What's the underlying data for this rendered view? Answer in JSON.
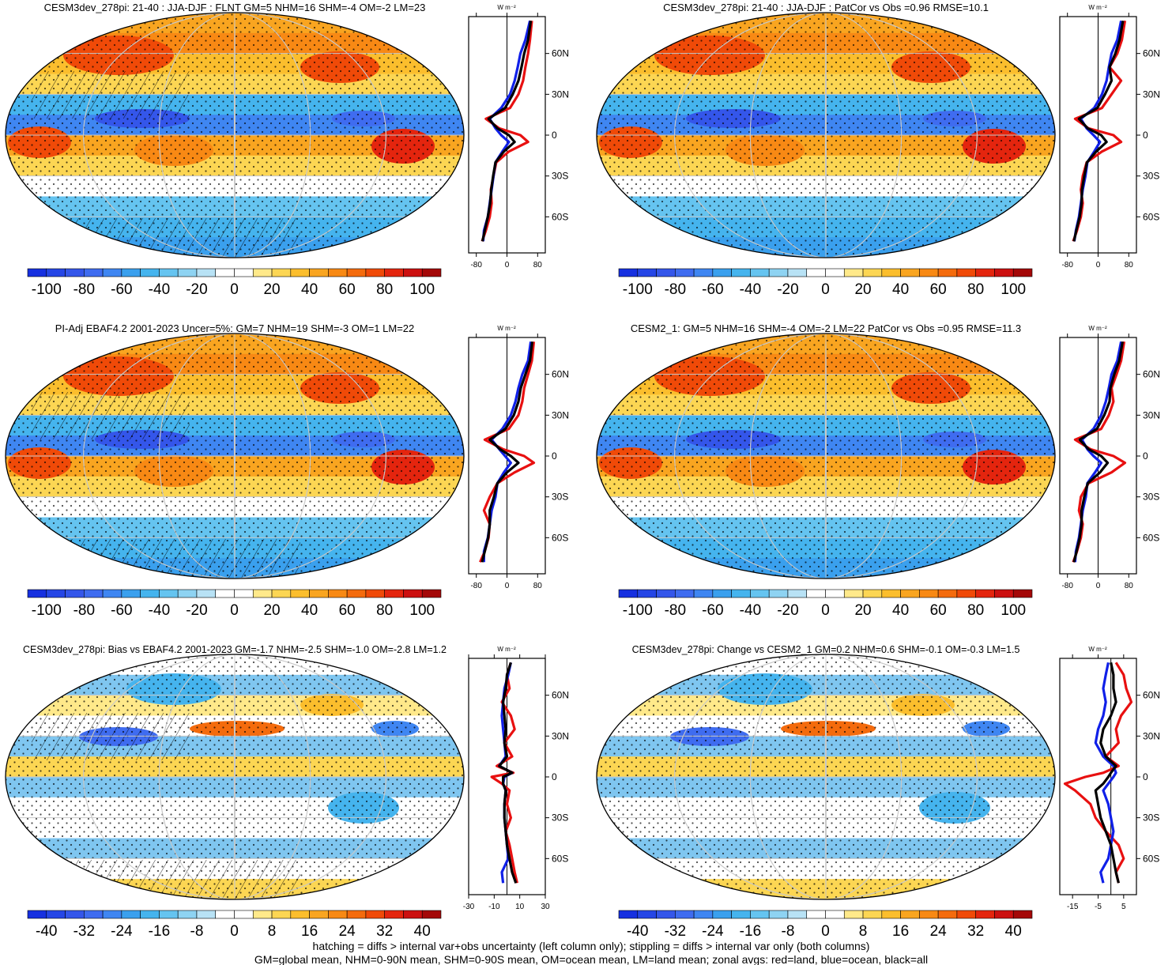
{
  "units_label": "W m⁻²",
  "palette": {
    "levels": 22,
    "colors": [
      "#1630e0",
      "#2546e6",
      "#3456ea",
      "#3f6cf0",
      "#3f86f2",
      "#3aa0ee",
      "#45b4ee",
      "#65c4f0",
      "#8ed3f2",
      "#b8e2f5",
      "#ffffff",
      "#ffffff",
      "#ffe98a",
      "#fcd653",
      "#fbbe2d",
      "#f9a520",
      "#f88914",
      "#f46b0d",
      "#f04a08",
      "#e4250e",
      "#cc1010",
      "#a40808"
    ]
  },
  "footer": {
    "line1": "hatching = diffs > internal var+obs uncertainty (left column only); stippling = diffs > internal var only (both columns)",
    "line2": "GM=global mean, NHM=0-90N mean, SHM=0-90S mean, OM=ocean mean, LM=land mean; zonal avgs: red=land, blue=ocean, black=all"
  },
  "chart_data": [
    {
      "type": "heatmap",
      "title": "CESM3dev_278pi: 21-40 : JJA-DJF : FLNT GM=5 NHM=16 SHM=-4 OM=-2 LM=23",
      "colorbar_ticks": [
        "-100",
        "-80",
        "-60",
        "-40",
        "-20",
        "0",
        "20",
        "40",
        "60",
        "80",
        "100"
      ],
      "colorbar_range": [
        -110,
        110
      ],
      "lat_ticks": [
        "60N",
        "30N",
        "0",
        "30S",
        "60S"
      ],
      "zonal_xticks": [
        "-80",
        "0",
        "80"
      ],
      "zonal_xlim": [
        -100,
        100
      ],
      "zonal": {
        "lat": [
          84,
          70,
          60,
          50,
          40,
          30,
          20,
          12,
          5,
          0,
          -5,
          -12,
          -20,
          -30,
          -40,
          -50,
          -60,
          -70,
          -78
        ],
        "land": [
          65,
          60,
          55,
          48,
          42,
          30,
          8,
          -55,
          -20,
          35,
          55,
          5,
          -28,
          -35,
          -42,
          -40,
          -45,
          -55,
          -65
        ],
        "ocean": [
          60,
          48,
          35,
          28,
          20,
          8,
          -15,
          -45,
          -30,
          -15,
          5,
          -12,
          -30,
          -35,
          -40,
          -45,
          -50,
          -60,
          -62
        ],
        "all": [
          62,
          55,
          45,
          38,
          30,
          15,
          -5,
          -48,
          -25,
          5,
          20,
          -8,
          -30,
          -36,
          -41,
          -44,
          -50,
          -58,
          -64
        ]
      }
    },
    {
      "type": "heatmap",
      "title": "CESM3dev_278pi: 21-40 : JJA-DJF : PatCor vs Obs =0.96 RMSE=10.1",
      "colorbar_ticks": [
        "-100",
        "-80",
        "-60",
        "-40",
        "-20",
        "0",
        "20",
        "40",
        "60",
        "80",
        "100"
      ],
      "colorbar_range": [
        -110,
        110
      ],
      "lat_ticks": [
        "60N",
        "30N",
        "0",
        "30S",
        "60S"
      ],
      "zonal_xticks": [
        "-80",
        "0",
        "80"
      ],
      "zonal_xlim": [
        -100,
        100
      ],
      "zonal": {
        "lat": [
          84,
          70,
          60,
          50,
          40,
          30,
          20,
          12,
          5,
          0,
          -5,
          -12,
          -20,
          -30,
          -40,
          -50,
          -60,
          -70,
          -78
        ],
        "land": [
          70,
          62,
          50,
          30,
          60,
          35,
          10,
          -60,
          -25,
          40,
          60,
          10,
          -30,
          -40,
          -45,
          -40,
          -45,
          -55,
          -65
        ],
        "ocean": [
          60,
          50,
          35,
          28,
          22,
          10,
          -10,
          -45,
          -30,
          -12,
          5,
          -10,
          -28,
          -33,
          -40,
          -45,
          -50,
          -58,
          -62
        ],
        "all": [
          65,
          56,
          45,
          30,
          35,
          18,
          -2,
          -50,
          -27,
          8,
          22,
          -5,
          -29,
          -36,
          -42,
          -43,
          -48,
          -57,
          -63
        ]
      }
    },
    {
      "type": "heatmap",
      "title": "PI-Adj EBAF4.2 2001-2023 Uncer=5%: GM=7 NHM=19 SHM=-3 OM=1 LM=22",
      "colorbar_ticks": [
        "-100",
        "-80",
        "-60",
        "-40",
        "-20",
        "0",
        "20",
        "40",
        "60",
        "80",
        "100"
      ],
      "colorbar_range": [
        -110,
        110
      ],
      "lat_ticks": [
        "60N",
        "30N",
        "0",
        "30S",
        "60S"
      ],
      "zonal_xticks": [
        "-80",
        "0",
        "80"
      ],
      "zonal_xlim": [
        -100,
        100
      ],
      "zonal": {
        "lat": [
          84,
          70,
          60,
          50,
          40,
          30,
          20,
          12,
          5,
          0,
          -5,
          -12,
          -20,
          -30,
          -40,
          -50,
          -60,
          -70,
          -78
        ],
        "land": [
          70,
          65,
          55,
          45,
          40,
          30,
          5,
          -58,
          -10,
          45,
          70,
          20,
          -25,
          -45,
          -60,
          -45,
          -48,
          -58,
          -70
        ],
        "ocean": [
          62,
          55,
          40,
          30,
          22,
          10,
          -12,
          -40,
          -20,
          -5,
          10,
          -8,
          -25,
          -30,
          -40,
          -45,
          -50,
          -60,
          -60
        ],
        "all": [
          66,
          60,
          48,
          36,
          30,
          18,
          -4,
          -45,
          -18,
          10,
          30,
          0,
          -25,
          -34,
          -45,
          -45,
          -49,
          -58,
          -65
        ]
      }
    },
    {
      "type": "heatmap",
      "title": "CESM2_1: GM=5 NHM=16 SHM=-4 OM=-2 LM=22 PatCor vs Obs =0.95 RMSE=11.3",
      "colorbar_ticks": [
        "-100",
        "-80",
        "-60",
        "-40",
        "-20",
        "0",
        "20",
        "40",
        "60",
        "80",
        "100"
      ],
      "colorbar_range": [
        -110,
        110
      ],
      "lat_ticks": [
        "60N",
        "30N",
        "0",
        "30S",
        "60S"
      ],
      "zonal_xticks": [
        "-80",
        "0",
        "80"
      ],
      "zonal_xlim": [
        -100,
        100
      ],
      "zonal": {
        "lat": [
          84,
          70,
          60,
          50,
          40,
          30,
          20,
          12,
          5,
          0,
          -5,
          -12,
          -20,
          -30,
          -40,
          -50,
          -60,
          -70,
          -78
        ],
        "land": [
          68,
          60,
          48,
          35,
          40,
          28,
          8,
          -60,
          -20,
          40,
          70,
          35,
          -25,
          -45,
          -50,
          -40,
          -45,
          -55,
          -65
        ],
        "ocean": [
          60,
          50,
          35,
          28,
          20,
          8,
          -12,
          -42,
          -28,
          -12,
          8,
          -8,
          -28,
          -32,
          -40,
          -45,
          -50,
          -58,
          -60
        ],
        "all": [
          64,
          55,
          42,
          32,
          30,
          16,
          -3,
          -48,
          -25,
          8,
          25,
          5,
          -27,
          -36,
          -43,
          -43,
          -48,
          -56,
          -63
        ]
      }
    },
    {
      "type": "heatmap",
      "title": "CESM3dev_278pi: Bias vs EBAF4.2 2001-2023 GM=-1.7 NHM=-2.5 SHM=-1.0 OM=-2.8 LM=1.2",
      "colorbar_ticks": [
        "-40",
        "-32",
        "-24",
        "-16",
        "-8",
        "0",
        "8",
        "16",
        "24",
        "32",
        "40"
      ],
      "colorbar_range": [
        -44,
        44
      ],
      "lat_ticks": [
        "60N",
        "30N",
        "0",
        "30S",
        "60S"
      ],
      "zonal_xticks": [
        "-30",
        "-10",
        "10",
        "30"
      ],
      "zonal_xlim": [
        -30,
        30
      ],
      "zonal": {
        "lat": [
          84,
          75,
          65,
          55,
          45,
          35,
          25,
          15,
          8,
          3,
          0,
          -5,
          -10,
          -20,
          -30,
          -40,
          -50,
          -60,
          -70,
          -78
        ],
        "land": [
          3,
          0,
          2,
          -4,
          3,
          6,
          -2,
          4,
          -8,
          5,
          -12,
          -4,
          2,
          0,
          3,
          -1,
          2,
          4,
          6,
          8
        ],
        "ocean": [
          3,
          1,
          -2,
          -3,
          -4,
          -3,
          -2,
          -1,
          -6,
          4,
          -2,
          -3,
          -1,
          -2,
          -2,
          -1,
          0,
          1,
          -4,
          -3
        ],
        "all": [
          3,
          0,
          -1,
          -3,
          -2,
          -1,
          -2,
          0,
          -6,
          4,
          -3,
          -3,
          -1,
          -2,
          -2,
          -1,
          0,
          2,
          4,
          7
        ]
      }
    },
    {
      "type": "heatmap",
      "title": "CESM3dev_278pi: Change vs CESM2_1 GM=0.2 NHM=0.6 SHM=-0.1 OM=-0.3 LM=1.5",
      "colorbar_ticks": [
        "-40",
        "-32",
        "-24",
        "-16",
        "-8",
        "0",
        "8",
        "16",
        "24",
        "32",
        "40"
      ],
      "colorbar_range": [
        -44,
        44
      ],
      "lat_ticks": [
        "60N",
        "30N",
        "0",
        "30S",
        "60S"
      ],
      "zonal_xticks": [
        "-15",
        "-5",
        "5"
      ],
      "zonal_xlim": [
        -20,
        10
      ],
      "zonal": {
        "lat": [
          84,
          75,
          65,
          55,
          45,
          35,
          25,
          15,
          8,
          3,
          0,
          -5,
          -10,
          -20,
          -30,
          -40,
          -50,
          -60,
          -70,
          -78
        ],
        "land": [
          2,
          5,
          6,
          8,
          4,
          2,
          3,
          -2,
          3,
          -3,
          -10,
          -18,
          -14,
          -8,
          -6,
          -2,
          3,
          5,
          2,
          3
        ],
        "ocean": [
          -1,
          -2,
          -3,
          -2,
          -3,
          -5,
          -6,
          -3,
          1,
          2,
          1,
          -1,
          -3,
          -1,
          0,
          1,
          0,
          -1,
          -4,
          -3
        ],
        "all": [
          0,
          1,
          1,
          2,
          0,
          -3,
          -4,
          -2,
          2,
          0,
          -1,
          -3,
          -6,
          -5,
          -4,
          -2,
          0,
          1,
          2,
          3
        ]
      }
    }
  ]
}
